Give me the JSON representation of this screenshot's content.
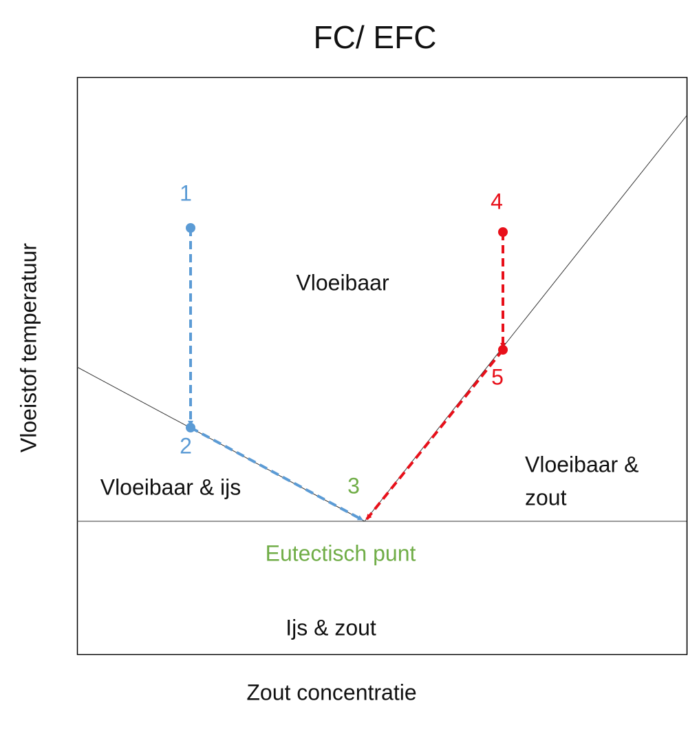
{
  "title": "FC/ EFC",
  "y_axis_label": "Vloeistof temperatuur",
  "x_axis_label": "Zout concentratie",
  "regions": [
    {
      "lines": [
        "Vloeibaar"
      ]
    },
    {
      "lines": [
        "Vloeibaar & ijs"
      ]
    },
    {
      "lines": [
        "Vloeibaar &",
        "zout"
      ]
    },
    {
      "lines": [
        "Ijs & zout"
      ]
    }
  ],
  "points": [
    {
      "label": "1"
    },
    {
      "label": "2"
    },
    {
      "label": "3"
    },
    {
      "label": "4"
    },
    {
      "label": "5"
    }
  ],
  "eutectic_label": "Eutectisch punt"
}
